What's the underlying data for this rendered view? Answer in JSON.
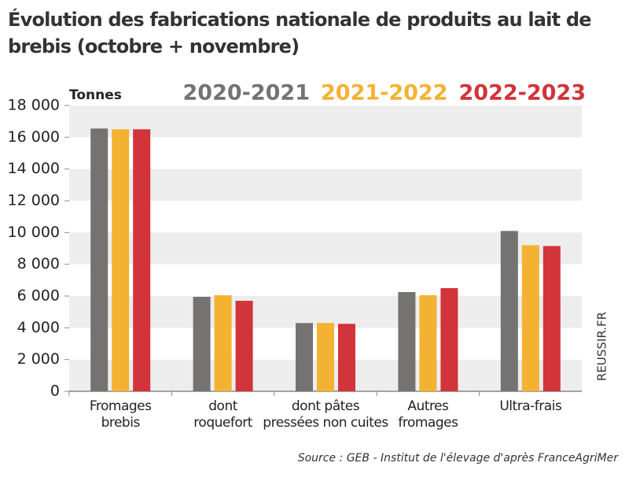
{
  "chart_data": {
    "type": "bar",
    "title": "Évolution des fabrications nationale de produits au lait de brebis (octobre + novembre)",
    "y_label": "Tonnes",
    "source": "Source : GEB - Institut de l'élevage d'après FranceAgriMer",
    "credit": "REUSSIR.FR",
    "categories": [
      "Fromages\nbrebis",
      "dont\nroquefort",
      "dont pâtes\npressées non cuites",
      "Autres\nfromages",
      "Ultra-frais"
    ],
    "series": [
      {
        "name": "2020-2021",
        "color": "#757371",
        "values": [
          16550,
          5950,
          4300,
          6250,
          10100
        ]
      },
      {
        "name": "2021-2022",
        "color": "#f4b233",
        "values": [
          16500,
          6050,
          4300,
          6050,
          9200
        ]
      },
      {
        "name": "2022-2023",
        "color": "#d1343a",
        "values": [
          16500,
          5700,
          4250,
          6500,
          9150
        ]
      }
    ],
    "ylim": [
      0,
      18000
    ],
    "yticks": [
      0,
      {
        "value": 2000,
        "label": "2 000"
      },
      {
        "value": 4000,
        "label": "4 000"
      },
      {
        "value": 6000,
        "label": "6 000"
      },
      {
        "value": 8000,
        "label": "8 000"
      },
      {
        "value": 10000,
        "label": "10 000"
      },
      {
        "value": 12000,
        "label": "12 000"
      },
      {
        "value": 14000,
        "label": "14 000"
      },
      {
        "value": 16000,
        "label": "16 000"
      },
      {
        "value": 18000,
        "label": "18 000"
      }
    ],
    "grid": true
  }
}
